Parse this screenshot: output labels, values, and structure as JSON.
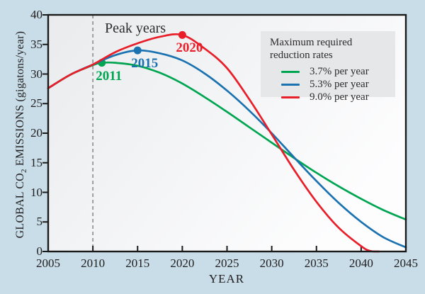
{
  "figure": {
    "background": "#c9dde8",
    "plot_gradient": [
      "#e9ebed",
      "#fdfdfe"
    ],
    "axis_color": "#1a1a1a",
    "dashed_line_color": "#8c8c8c",
    "annotations": {
      "peak_years": "Peak years"
    }
  },
  "chart_data": {
    "type": "line",
    "title": "",
    "xlabel": "YEAR",
    "ylabel": "GLOBAL CO2 EMISSIONS (gigatons/year)",
    "ylabel_parts": {
      "pre": "GLOBAL CO",
      "sub": "2",
      "post": " EMISSIONS (gigatons/year)"
    },
    "xlim": [
      2005,
      2045
    ],
    "ylim": [
      0,
      40
    ],
    "x_ticks": [
      2005,
      2010,
      2015,
      2020,
      2025,
      2030,
      2035,
      2040,
      2045
    ],
    "y_ticks": [
      0,
      5,
      10,
      15,
      20,
      25,
      30,
      35,
      40
    ],
    "grid": false,
    "dashed_vline_x": 2010,
    "legend": {
      "title": "Maximum required reduction rates",
      "position": "upper right",
      "background": "#e6e7e8"
    },
    "series": [
      {
        "name": "3.7% per year",
        "label": "3.7% per year",
        "color": "#00a551",
        "peak_year": 2011,
        "peak_value": 31.9,
        "peak_label": "2011",
        "points": [
          [
            2005,
            27.6
          ],
          [
            2007.5,
            29.9
          ],
          [
            2010,
            31.5
          ],
          [
            2011,
            31.9
          ],
          [
            2012.5,
            31.9
          ],
          [
            2015,
            31.4
          ],
          [
            2017.5,
            30.2
          ],
          [
            2020,
            28.4
          ],
          [
            2022.5,
            26.1
          ],
          [
            2025,
            23.6
          ],
          [
            2027.5,
            21.0
          ],
          [
            2030,
            18.4
          ],
          [
            2032.5,
            15.8
          ],
          [
            2035,
            13.3
          ],
          [
            2037.5,
            11.0
          ],
          [
            2040,
            8.9
          ],
          [
            2042.5,
            7.0
          ],
          [
            2045,
            5.4
          ]
        ]
      },
      {
        "name": "5.3% per year",
        "label": "5.3% per year",
        "color": "#1b72b0",
        "peak_year": 2015,
        "peak_value": 34.0,
        "peak_label": "2015",
        "points": [
          [
            2005,
            27.6
          ],
          [
            2007.5,
            29.9
          ],
          [
            2010,
            31.6
          ],
          [
            2012.5,
            33.2
          ],
          [
            2015,
            34.0
          ],
          [
            2017.5,
            33.5
          ],
          [
            2020,
            32.3
          ],
          [
            2022.5,
            30.1
          ],
          [
            2025,
            27.2
          ],
          [
            2027.5,
            23.8
          ],
          [
            2030,
            20.0
          ],
          [
            2032.5,
            15.9
          ],
          [
            2035,
            11.9
          ],
          [
            2037.5,
            8.2
          ],
          [
            2040,
            5.0
          ],
          [
            2042.5,
            2.4
          ],
          [
            2045,
            0.7
          ]
        ]
      },
      {
        "name": "9.0% per year",
        "label": "9.0% per year",
        "color": "#e81e29",
        "peak_year": 2020,
        "peak_value": 36.6,
        "peak_label": "2020",
        "points": [
          [
            2005,
            27.6
          ],
          [
            2007.5,
            29.9
          ],
          [
            2010,
            31.6
          ],
          [
            2012.5,
            33.7
          ],
          [
            2015,
            35.2
          ],
          [
            2017.5,
            36.3
          ],
          [
            2020,
            36.6
          ],
          [
            2022.5,
            34.3
          ],
          [
            2025,
            31.0
          ],
          [
            2027.5,
            25.7
          ],
          [
            2030,
            19.8
          ],
          [
            2032.5,
            13.8
          ],
          [
            2035,
            8.4
          ],
          [
            2037.5,
            4.0
          ],
          [
            2040,
            0.9
          ],
          [
            2041,
            0.1
          ],
          [
            2042,
            0.0
          ]
        ]
      }
    ]
  }
}
